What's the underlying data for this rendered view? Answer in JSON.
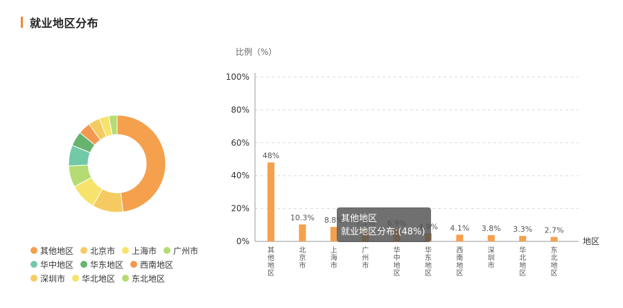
{
  "header": {
    "title": "就业地区分布"
  },
  "colors": {
    "accent": "#f0872a",
    "bar": "#f5a04c",
    "grid": "#d9d9d9",
    "axis": "#999999"
  },
  "legend": {
    "rows": [
      [
        {
          "label": "其他地区",
          "color": "#f5a04c"
        },
        {
          "label": "北京市",
          "color": "#f5cb61"
        },
        {
          "label": "上海市",
          "color": "#f7e36b"
        },
        {
          "label": "广州市",
          "color": "#b4dc73"
        }
      ],
      [
        {
          "label": "华中地区",
          "color": "#72c9a8"
        },
        {
          "label": "华东地区",
          "color": "#67b46e"
        },
        {
          "label": "西南地区",
          "color": "#f5984f"
        }
      ],
      [
        {
          "label": "深圳市",
          "color": "#f5cb61"
        },
        {
          "label": "华北地区",
          "color": "#f7e36b"
        },
        {
          "label": "东北地区",
          "color": "#b4dc73"
        }
      ]
    ]
  },
  "tooltip": {
    "title": "其他地区",
    "value": "就业地区分布:(48%)"
  },
  "chart_data": [
    {
      "type": "pie",
      "style": "donut",
      "categories": [
        "其他地区",
        "北京市",
        "上海市",
        "广州市",
        "华中地区",
        "华东地区",
        "西南地区",
        "深圳市",
        "华北地区",
        "东北地区"
      ],
      "values": [
        48,
        10.3,
        8.8,
        7.1,
        6.9,
        4.9,
        4.1,
        3.8,
        3.3,
        2.7
      ],
      "colors": [
        "#f5a04c",
        "#f5cb61",
        "#f7e36b",
        "#b4dc73",
        "#72c9a8",
        "#67b46e",
        "#f5984f",
        "#f5cb61",
        "#f7e36b",
        "#b4dc73"
      ],
      "legend_position": "bottom"
    },
    {
      "type": "bar",
      "categories": [
        "其他地区",
        "北京市",
        "上海市",
        "广州市",
        "华中地区",
        "华东地区",
        "西南地区",
        "深圳市",
        "华北地区",
        "东北地区"
      ],
      "values": [
        48,
        10.3,
        8.8,
        7.1,
        6.9,
        4.9,
        4.1,
        3.8,
        3.3,
        2.7
      ],
      "data_labels": [
        "48%",
        "10.3%",
        "8.8%",
        "7.1%",
        "6.9%",
        "4.9%",
        "4.1%",
        "3.8%",
        "3.3%",
        "2.7%"
      ],
      "xlabel": "地区",
      "ylabel": "比例（%）",
      "ylim": [
        0,
        100
      ],
      "yticks": [
        0,
        20,
        40,
        60,
        80,
        100
      ],
      "ytick_labels": [
        "0%",
        "20%",
        "40%",
        "60%",
        "80%",
        "100%"
      ],
      "grid": true,
      "grid_style": "dashed"
    }
  ]
}
